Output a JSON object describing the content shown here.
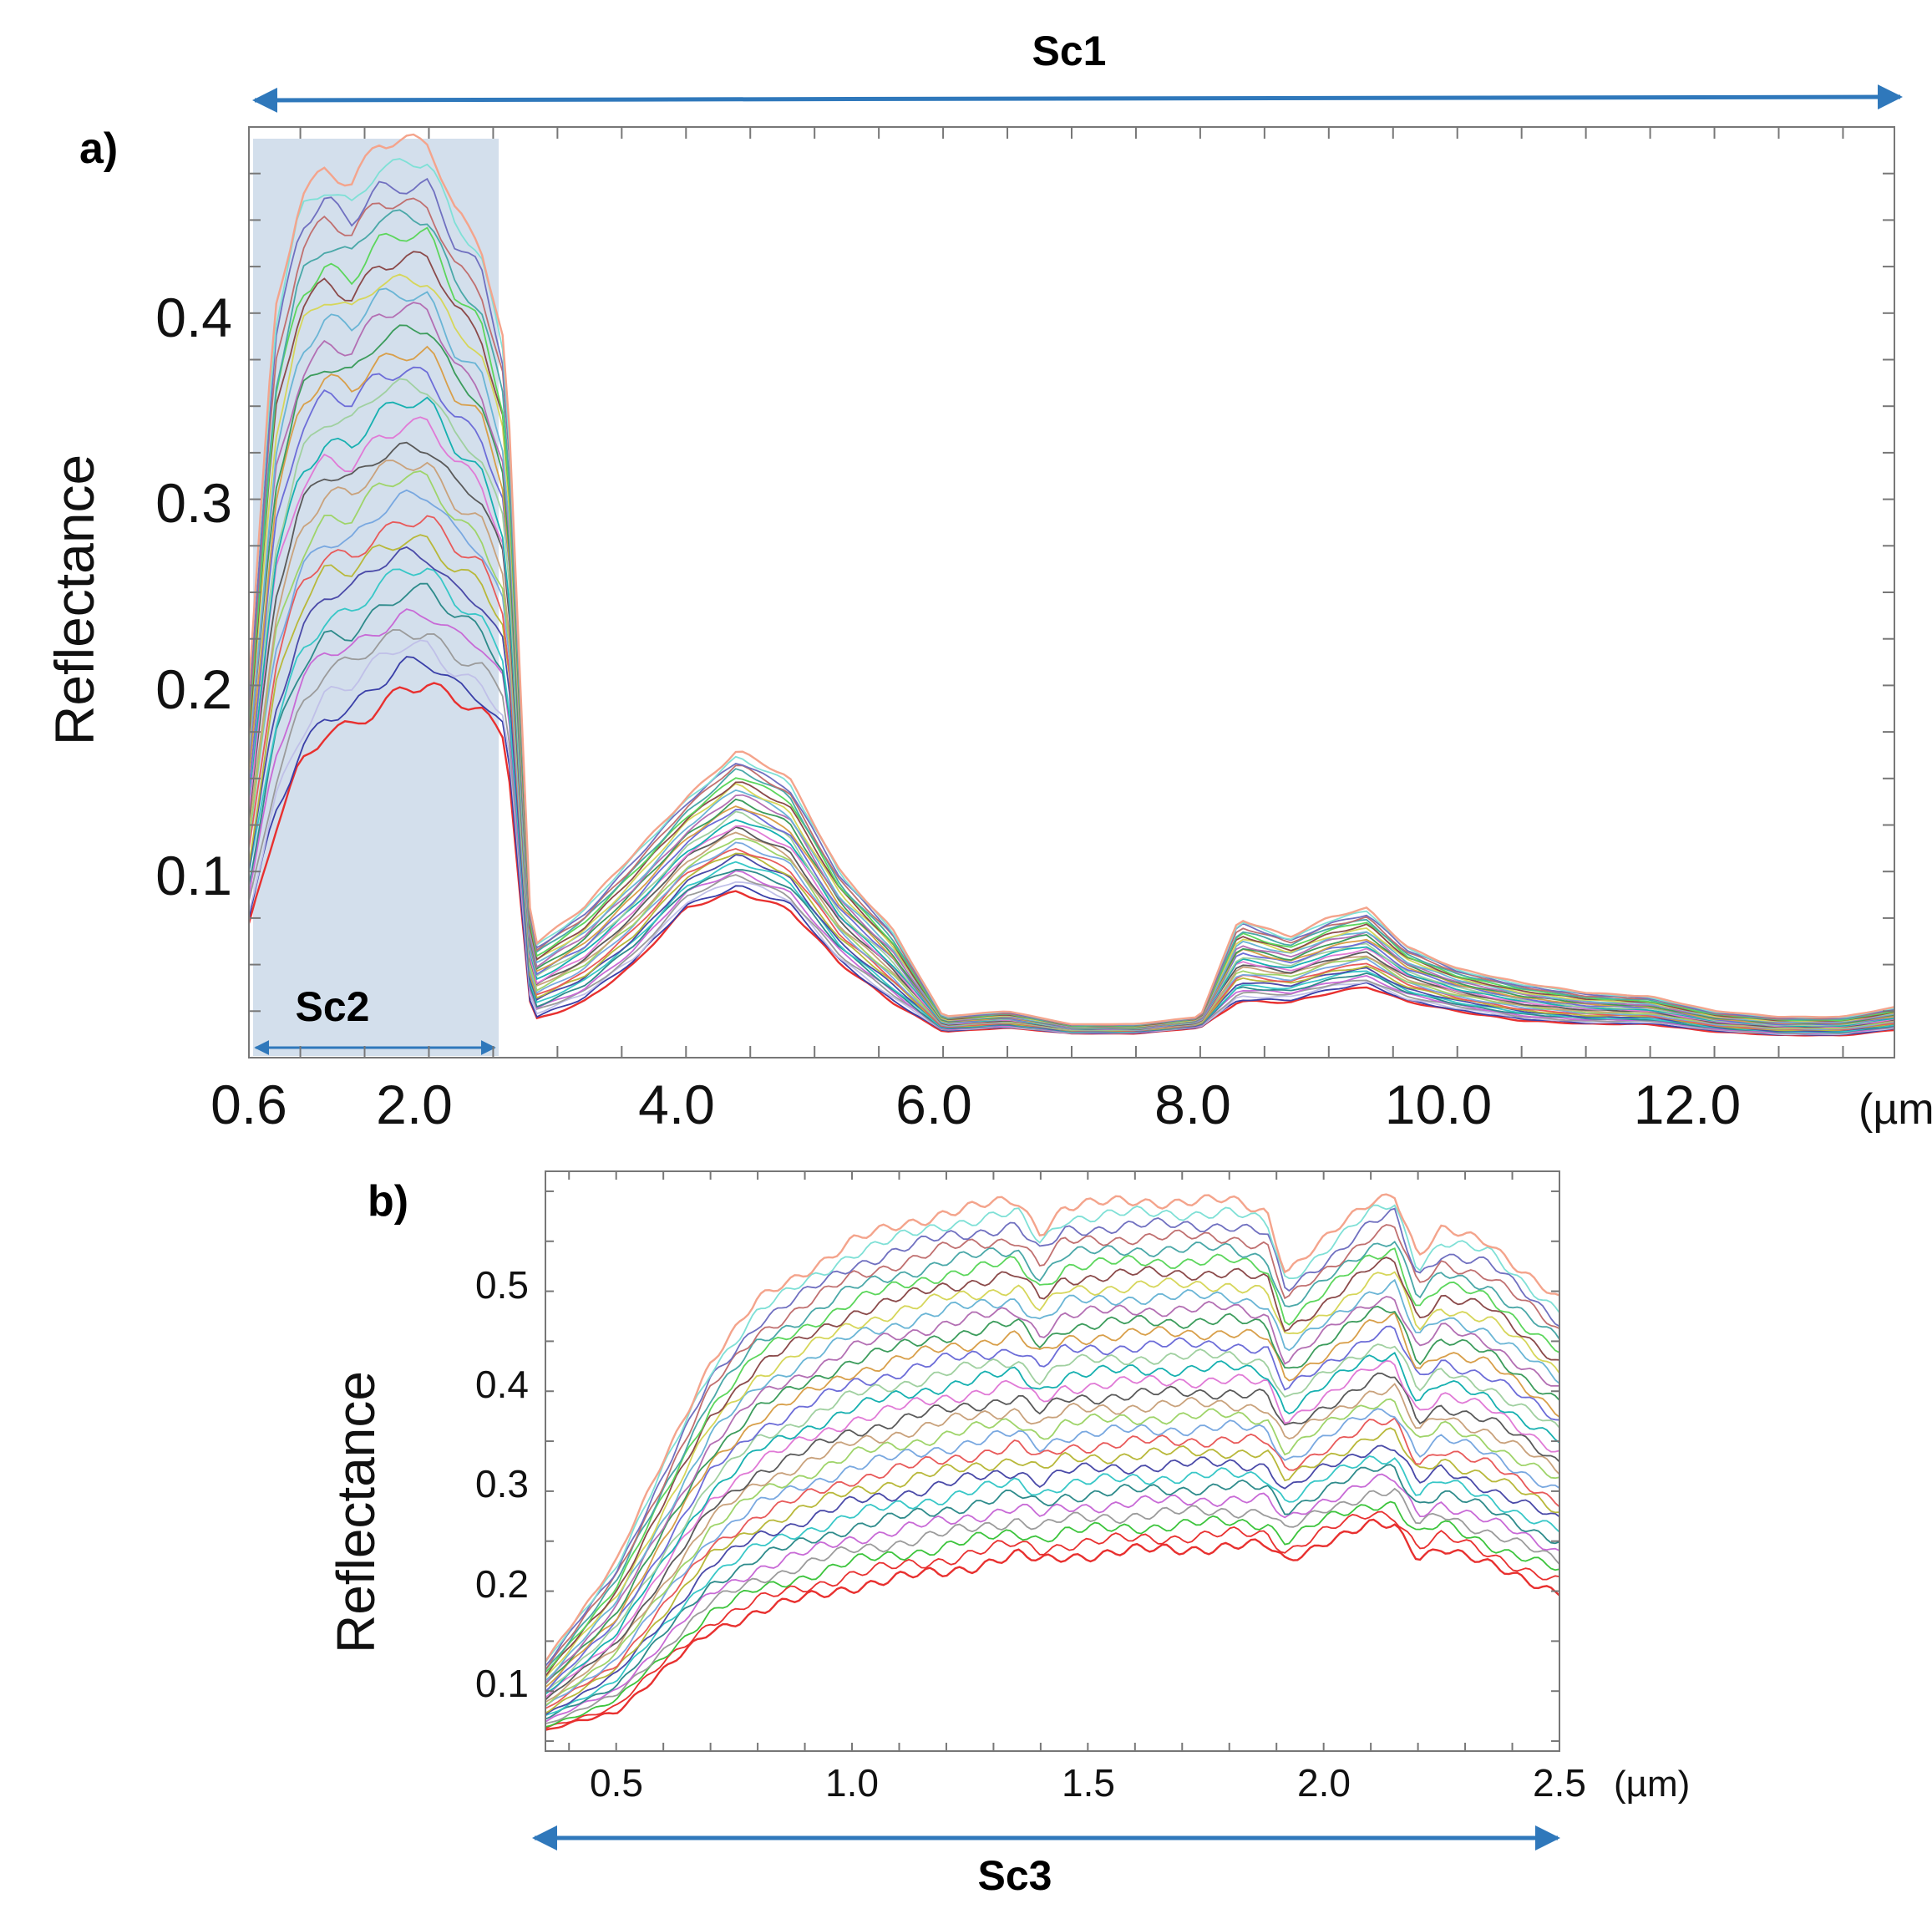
{
  "chart_data": [
    {
      "panel": "a)",
      "type": "line",
      "xlabel": "",
      "x_unit": "(µm)",
      "ylabel": "Reflectance",
      "x_ticks": [
        "0.6",
        "2.0",
        "4.0",
        "6.0",
        "8.0",
        "10.0",
        "12.0"
      ],
      "y_ticks": [
        "0.1",
        "0.2",
        "0.3",
        "0.4"
      ],
      "xlim": [
        0.6,
        13.4
      ],
      "ylim": [
        0.0,
        0.5
      ],
      "grid": false,
      "series_note": "approx. 30 overlapping reflectance spectra",
      "highlight_region": {
        "label": "Sc2",
        "x_range": [
          0.6,
          2.5
        ]
      },
      "range_annotation": {
        "label": "Sc1",
        "x_range": [
          0.6,
          13.4
        ]
      },
      "envelope": {
        "x": [
          0.6,
          0.8,
          1.0,
          1.2,
          1.4,
          1.6,
          1.8,
          2.0,
          2.2,
          2.4,
          2.6,
          2.8,
          3.2,
          3.6,
          4.0,
          4.4,
          4.8,
          5.2,
          5.6,
          6.0,
          6.5,
          7.0,
          7.5,
          8.0,
          8.3,
          8.7,
          9.0,
          9.3,
          9.6,
          10.0,
          10.5,
          11.0,
          11.5,
          12.0,
          12.5,
          13.0,
          13.4
        ],
        "upper": [
          0.2,
          0.4,
          0.465,
          0.48,
          0.47,
          0.49,
          0.49,
          0.49,
          0.455,
          0.44,
          0.38,
          0.06,
          0.08,
          0.11,
          0.14,
          0.165,
          0.15,
          0.1,
          0.07,
          0.022,
          0.025,
          0.018,
          0.018,
          0.022,
          0.075,
          0.065,
          0.075,
          0.08,
          0.06,
          0.048,
          0.04,
          0.035,
          0.033,
          0.025,
          0.022,
          0.022,
          0.027
        ],
        "lower": [
          0.07,
          0.12,
          0.155,
          0.175,
          0.18,
          0.19,
          0.2,
          0.2,
          0.19,
          0.185,
          0.17,
          0.02,
          0.03,
          0.05,
          0.08,
          0.09,
          0.08,
          0.05,
          0.03,
          0.014,
          0.016,
          0.013,
          0.013,
          0.016,
          0.03,
          0.03,
          0.035,
          0.038,
          0.03,
          0.025,
          0.02,
          0.018,
          0.018,
          0.014,
          0.012,
          0.012,
          0.015
        ]
      }
    },
    {
      "panel": "b)",
      "type": "line",
      "xlabel": "",
      "x_unit": "(µm)",
      "ylabel": "Reflectance",
      "x_ticks": [
        "0.5",
        "1.0",
        "1.5",
        "2.0",
        "2.5"
      ],
      "y_ticks": [
        "0.1",
        "0.2",
        "0.3",
        "0.4",
        "0.5"
      ],
      "xlim": [
        0.35,
        2.5
      ],
      "ylim": [
        0.04,
        0.62
      ],
      "grid": false,
      "series_note": "approx. 30 overlapping reflectance spectra",
      "range_annotation": {
        "label": "Sc3",
        "x_range": [
          0.35,
          2.5
        ]
      },
      "envelope": {
        "x": [
          0.35,
          0.5,
          0.6,
          0.7,
          0.8,
          1.0,
          1.2,
          1.35,
          1.4,
          1.45,
          1.6,
          1.8,
          1.88,
          1.92,
          2.0,
          2.1,
          2.15,
          2.2,
          2.25,
          2.35,
          2.5
        ],
        "upper": [
          0.13,
          0.23,
          0.33,
          0.43,
          0.49,
          0.55,
          0.58,
          0.59,
          0.56,
          0.585,
          0.59,
          0.59,
          0.58,
          0.52,
          0.55,
          0.59,
          0.6,
          0.535,
          0.56,
          0.55,
          0.49
        ],
        "lower": [
          0.06,
          0.08,
          0.12,
          0.16,
          0.18,
          0.205,
          0.22,
          0.235,
          0.23,
          0.235,
          0.24,
          0.245,
          0.245,
          0.23,
          0.25,
          0.265,
          0.265,
          0.235,
          0.245,
          0.225,
          0.2
        ]
      }
    }
  ]
}
